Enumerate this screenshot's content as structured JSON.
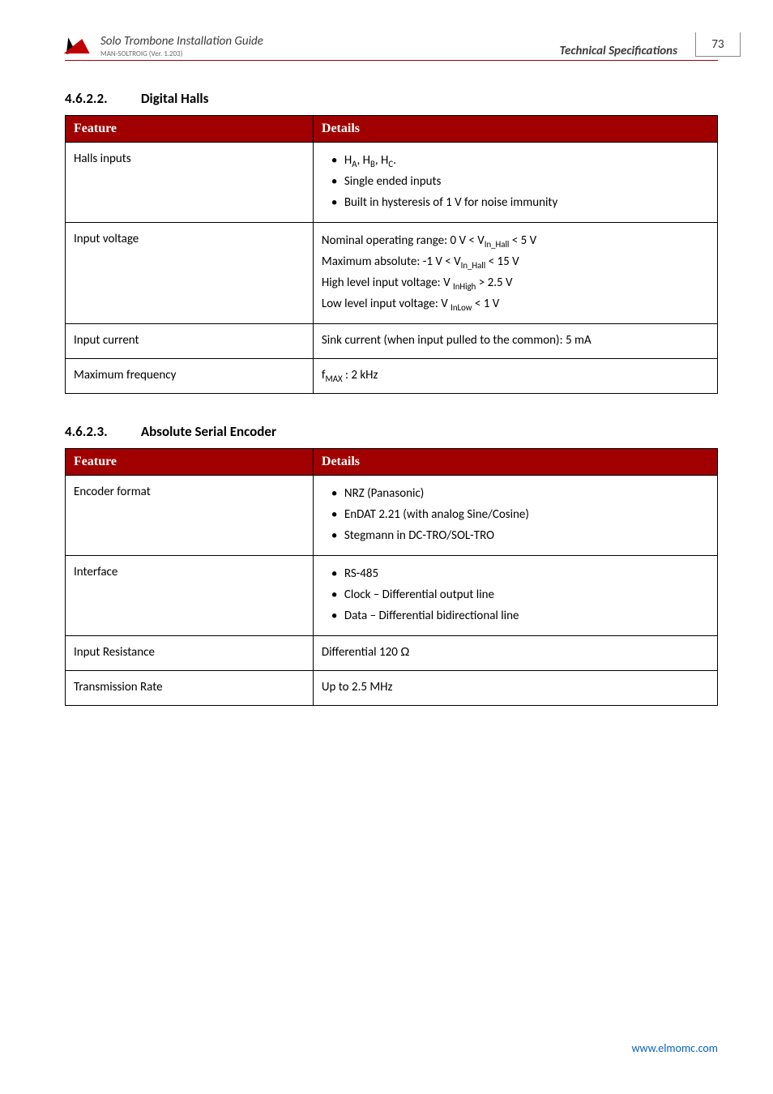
{
  "header": {
    "doc_title": "Solo Trombone Installation Guide",
    "version_line": "MAN-SOLTROIG (Ver. 1.203)",
    "section_label": "Technical Specifications",
    "page_number": "73"
  },
  "section1": {
    "number": "4.6.2.2.",
    "title": "Digital Halls",
    "col1": "Feature",
    "col2": "Details",
    "rows": {
      "r1": {
        "feature": "Halls inputs",
        "b1": "H_A, H_B, H_C.",
        "b2": "Single ended inputs",
        "b3": "Built in hysteresis of 1 V for noise immunity"
      },
      "r2": {
        "feature": "Input voltage",
        "l1": "Nominal operating range: 0 V < V_In_Hall < 5 V",
        "l2": "Maximum absolute: -1 V < V_In_Hall < 15 V",
        "l3": "High level input voltage: V _InHigh > 2.5 V",
        "l4": "Low level input voltage: V _InLow < 1 V"
      },
      "r3": {
        "feature": "Input current",
        "detail": "Sink current (when input pulled to the common): 5 mA"
      },
      "r4": {
        "feature": "Maximum frequency",
        "detail": "f_MAX : 2 kHz"
      }
    }
  },
  "section2": {
    "number": "4.6.2.3.",
    "title": "Absolute Serial Encoder",
    "col1": "Feature",
    "col2": "Details",
    "rows": {
      "r1": {
        "feature": "Encoder format",
        "b1": "NRZ (Panasonic)",
        "b2": "EnDAT 2.21 (with analog Sine/Cosine)",
        "b3": "Stegmann in DC-TRO/SOL-TRO"
      },
      "r2": {
        "feature": "Interface",
        "b1": "RS-485",
        "b2": "Clock – Differential output line",
        "b3": "Data – Differential bidirectional line"
      },
      "r3": {
        "feature": "Input Resistance",
        "detail": "Differential 120 Ω"
      },
      "r4": {
        "feature": "Transmission Rate",
        "detail": "Up to 2.5 MHz"
      }
    }
  },
  "footer": {
    "link": "www.elmomc.com"
  },
  "colors": {
    "header_rule": "#a00000",
    "table_header_bg": "#a00000",
    "table_header_fg": "#ffffff",
    "border": "#000000",
    "link": "#0563c1"
  }
}
